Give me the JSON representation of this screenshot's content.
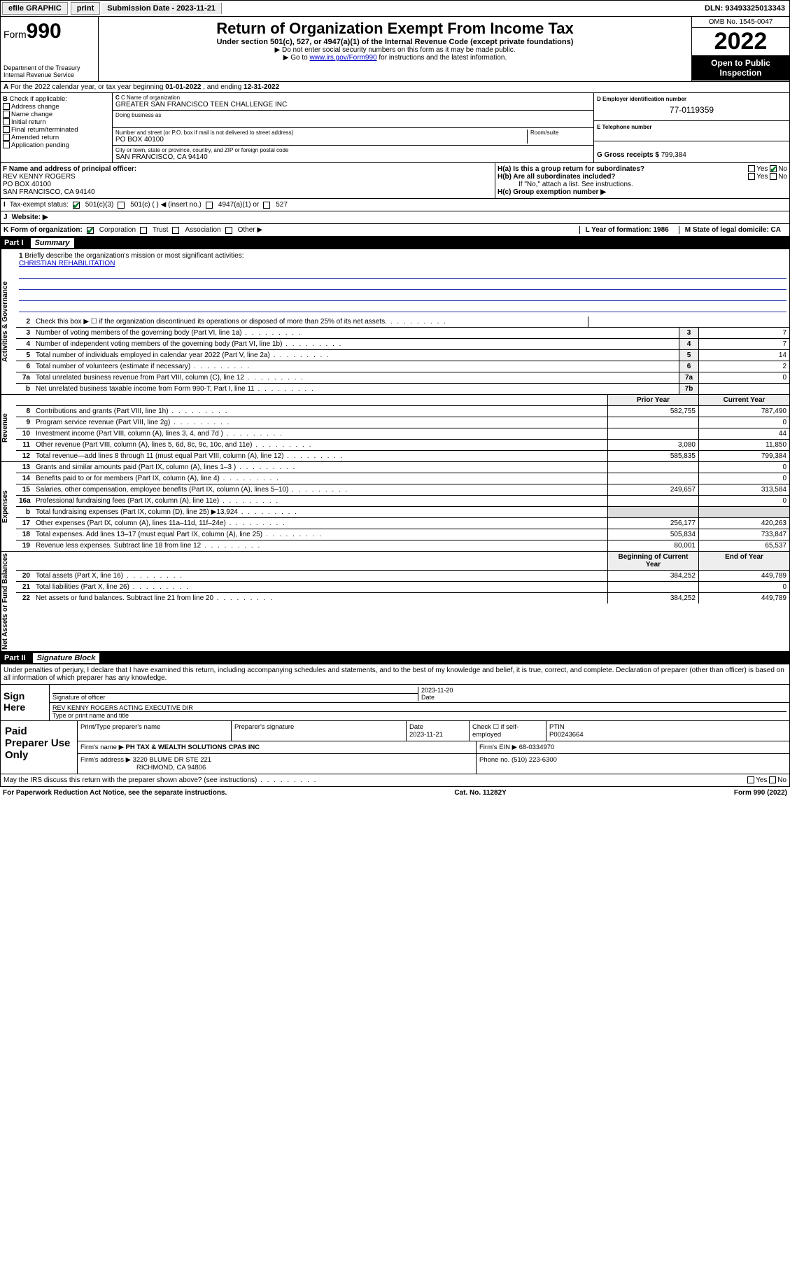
{
  "topbar": {
    "efile": "efile GRAPHIC",
    "print": "print",
    "submission_label": "Submission Date - 2023-11-21",
    "dln": "DLN: 93493325013343"
  },
  "header": {
    "form_prefix": "Form",
    "form_number": "990",
    "dept": "Department of the Treasury",
    "irs": "Internal Revenue Service",
    "title": "Return of Organization Exempt From Income Tax",
    "sub1": "Under section 501(c), 527, or 4947(a)(1) of the Internal Revenue Code (except private foundations)",
    "sub2a": "▶ Do not enter social security numbers on this form as it may be made public.",
    "sub2b_pre": "▶ Go to ",
    "sub2b_link": "www.irs.gov/Form990",
    "sub2b_post": " for instructions and the latest information.",
    "omb": "OMB No. 1545-0047",
    "year": "2022",
    "open": "Open to Public Inspection"
  },
  "sectionA": {
    "text_pre": "For the 2022 calendar year, or tax year beginning ",
    "begin": "01-01-2022",
    "mid": " , and ending ",
    "end": "12-31-2022"
  },
  "sectionB": {
    "title": "Check if applicable:",
    "items": [
      "Address change",
      "Name change",
      "Initial return",
      "Final return/terminated",
      "Amended return",
      "Application pending"
    ],
    "c_label": "C Name of organization",
    "org_name": "GREATER SAN FRANCISCO TEEN CHALLENGE INC",
    "dba_label": "Doing business as",
    "addr_label": "Number and street (or P.O. box if mail is not delivered to street address)",
    "room_label": "Room/suite",
    "addr": "PO BOX 40100",
    "city_label": "City or town, state or province, country, and ZIP or foreign postal code",
    "city": "SAN FRANCISCO, CA  94140",
    "d_label": "D Employer identification number",
    "ein": "77-0119359",
    "e_label": "E Telephone number",
    "g_label": "G Gross receipts $",
    "g_val": "799,384"
  },
  "sectionF": {
    "f_label": "F Name and address of principal officer:",
    "name": "REV KENNY ROGERS",
    "addr1": "PO BOX 40100",
    "addr2": "SAN FRANCISCO, CA  94140",
    "ha": "H(a)  Is this a group return for subordinates?",
    "hb": "H(b)  Are all subordinates included?",
    "hb_note": "If \"No,\" attach a list. See instructions.",
    "hc": "H(c)  Group exemption number ▶",
    "yes": "Yes",
    "no": "No"
  },
  "sectionI": {
    "label": "Tax-exempt status:",
    "opt1": "501(c)(3)",
    "opt2": "501(c) (   ) ◀ (insert no.)",
    "opt3": "4947(a)(1) or",
    "opt4": "527"
  },
  "sectionJ": {
    "label": "Website: ▶"
  },
  "sectionK": {
    "label": "K Form of organization:",
    "opts": [
      "Corporation",
      "Trust",
      "Association",
      "Other ▶"
    ],
    "l_label": "L Year of formation: 1986",
    "m_label": "M State of legal domicile: CA"
  },
  "part1": {
    "num": "Part I",
    "title": "Summary"
  },
  "mission": {
    "num": "1",
    "label": "Briefly describe the organization's mission or most significant activities:",
    "text": "CHRISTIAN REHABILITATION"
  },
  "gov_rows": [
    {
      "n": "2",
      "t": "Check this box ▶ ☐  if the organization discontinued its operations or disposed of more than 25% of its net assets.",
      "box": "",
      "v": ""
    },
    {
      "n": "3",
      "t": "Number of voting members of the governing body (Part VI, line 1a)",
      "box": "3",
      "v": "7"
    },
    {
      "n": "4",
      "t": "Number of independent voting members of the governing body (Part VI, line 1b)",
      "box": "4",
      "v": "7"
    },
    {
      "n": "5",
      "t": "Total number of individuals employed in calendar year 2022 (Part V, line 2a)",
      "box": "5",
      "v": "14"
    },
    {
      "n": "6",
      "t": "Total number of volunteers (estimate if necessary)",
      "box": "6",
      "v": "2"
    },
    {
      "n": "7a",
      "t": "Total unrelated business revenue from Part VIII, column (C), line 12",
      "box": "7a",
      "v": "0"
    },
    {
      "n": "b",
      "t": "Net unrelated business taxable income from Form 990-T, Part I, line 11",
      "box": "7b",
      "v": ""
    }
  ],
  "rev_hdr": {
    "py": "Prior Year",
    "cy": "Current Year"
  },
  "rev_rows": [
    {
      "n": "8",
      "t": "Contributions and grants (Part VIII, line 1h)",
      "py": "582,755",
      "cy": "787,490"
    },
    {
      "n": "9",
      "t": "Program service revenue (Part VIII, line 2g)",
      "py": "",
      "cy": "0"
    },
    {
      "n": "10",
      "t": "Investment income (Part VIII, column (A), lines 3, 4, and 7d )",
      "py": "",
      "cy": "44"
    },
    {
      "n": "11",
      "t": "Other revenue (Part VIII, column (A), lines 5, 6d, 8c, 9c, 10c, and 11e)",
      "py": "3,080",
      "cy": "11,850"
    },
    {
      "n": "12",
      "t": "Total revenue—add lines 8 through 11 (must equal Part VIII, column (A), line 12)",
      "py": "585,835",
      "cy": "799,384"
    }
  ],
  "exp_rows": [
    {
      "n": "13",
      "t": "Grants and similar amounts paid (Part IX, column (A), lines 1–3 )",
      "py": "",
      "cy": "0"
    },
    {
      "n": "14",
      "t": "Benefits paid to or for members (Part IX, column (A), line 4)",
      "py": "",
      "cy": "0"
    },
    {
      "n": "15",
      "t": "Salaries, other compensation, employee benefits (Part IX, column (A), lines 5–10)",
      "py": "249,657",
      "cy": "313,584"
    },
    {
      "n": "16a",
      "t": "Professional fundraising fees (Part IX, column (A), line 11e)",
      "py": "",
      "cy": "0"
    },
    {
      "n": "b",
      "t": "Total fundraising expenses (Part IX, column (D), line 25) ▶13,924",
      "py": "shade",
      "cy": "shade"
    },
    {
      "n": "17",
      "t": "Other expenses (Part IX, column (A), lines 11a–11d, 11f–24e)",
      "py": "256,177",
      "cy": "420,263"
    },
    {
      "n": "18",
      "t": "Total expenses. Add lines 13–17 (must equal Part IX, column (A), line 25)",
      "py": "505,834",
      "cy": "733,847"
    },
    {
      "n": "19",
      "t": "Revenue less expenses. Subtract line 18 from line 12",
      "py": "80,001",
      "cy": "65,537"
    }
  ],
  "na_hdr": {
    "py": "Beginning of Current Year",
    "cy": "End of Year"
  },
  "na_rows": [
    {
      "n": "20",
      "t": "Total assets (Part X, line 16)",
      "py": "384,252",
      "cy": "449,789"
    },
    {
      "n": "21",
      "t": "Total liabilities (Part X, line 26)",
      "py": "",
      "cy": "0"
    },
    {
      "n": "22",
      "t": "Net assets or fund balances. Subtract line 21 from line 20",
      "py": "384,252",
      "cy": "449,789"
    }
  ],
  "part2": {
    "num": "Part II",
    "title": "Signature Block"
  },
  "declare": "Under penalties of perjury, I declare that I have examined this return, including accompanying schedules and statements, and to the best of my knowledge and belief, it is true, correct, and complete. Declaration of preparer (other than officer) is based on all information of which preparer has any knowledge.",
  "sign": {
    "here": "Sign Here",
    "sig_label": "Signature of officer",
    "date_label": "Date",
    "date": "2023-11-20",
    "name": "REV KENNY ROGERS  ACTING EXECUTIVE DIR",
    "name_label": "Type or print name and title"
  },
  "paid": {
    "title": "Paid Preparer Use Only",
    "h1": "Print/Type preparer's name",
    "h2": "Preparer's signature",
    "h3": "Date",
    "date": "2023-11-21",
    "h4": "Check ☐ if self-employed",
    "h5": "PTIN",
    "ptin": "P00243664",
    "firm_label": "Firm's name     ▶",
    "firm": "PH TAX & WEALTH SOLUTIONS CPAS INC",
    "ein_label": "Firm's EIN ▶",
    "ein": "68-0334970",
    "addr_label": "Firm's address ▶",
    "addr": "3220 BLUME DR STE 221",
    "addr2": "RICHMOND, CA  94806",
    "phone_label": "Phone no.",
    "phone": "(510) 223-6300"
  },
  "may": {
    "q": "May the IRS discuss this return with the preparer shown above? (see instructions)",
    "yes": "Yes",
    "no": "No"
  },
  "footer": {
    "left": "For Paperwork Reduction Act Notice, see the separate instructions.",
    "mid": "Cat. No. 11282Y",
    "right": "Form 990 (2022)"
  },
  "vtabs": {
    "gov": "Activities & Governance",
    "rev": "Revenue",
    "exp": "Expenses",
    "na": "Net Assets or Fund Balances"
  }
}
